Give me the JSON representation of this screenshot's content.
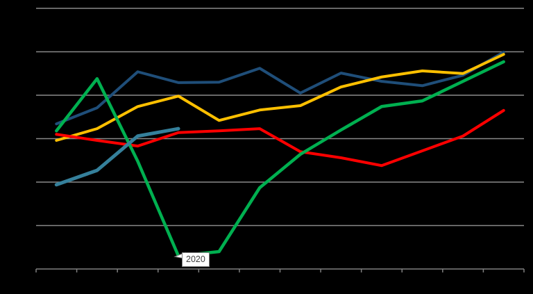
{
  "page": {
    "background": "#000000",
    "title": "",
    "visible_text": [
      "2020"
    ]
  },
  "chart_data": {
    "type": "line",
    "title": "",
    "xlabel": "",
    "ylabel": "",
    "axis_text_visible": false,
    "grid": true,
    "legend": "none",
    "num_points": 12,
    "x_tick_count": 13,
    "categories": [
      "",
      "",
      "",
      "2020",
      "",
      "",
      "",
      "",
      "",
      "",
      "",
      ""
    ],
    "ylim_gridline_units": [
      0,
      6
    ],
    "series": [
      {
        "name": "series-navy",
        "color": "#1F4E79",
        "width": 4,
        "values": [
          3.34,
          3.71,
          4.54,
          4.29,
          4.3,
          4.62,
          4.05,
          4.51,
          4.32,
          4.22,
          4.46,
          4.99
        ]
      },
      {
        "name": "series-gold",
        "color": "#FFC000",
        "width": 4,
        "values": [
          2.96,
          3.23,
          3.74,
          3.98,
          3.42,
          3.66,
          3.76,
          4.19,
          4.42,
          4.56,
          4.5,
          4.94
        ]
      },
      {
        "name": "series-red",
        "color": "#FF0000",
        "width": 4,
        "values": [
          3.1,
          2.96,
          2.83,
          3.14,
          3.18,
          3.23,
          2.7,
          2.56,
          2.38,
          2.72,
          3.06,
          3.65
        ]
      },
      {
        "name": "series-green",
        "color": "#00B050",
        "width": 4.5,
        "values": [
          3.18,
          4.38,
          2.48,
          0.3,
          0.4,
          1.87,
          2.64,
          3.2,
          3.74,
          3.87,
          4.32,
          4.77
        ]
      },
      {
        "name": "series-steel",
        "color": "#35809B",
        "width": 5,
        "values": [
          1.94,
          2.27,
          3.06,
          3.23
        ]
      }
    ],
    "callout": {
      "text": "2020",
      "series": "series-green",
      "point_index": 3
    },
    "colors": {
      "gridline": "#8a8a8a",
      "axis": "#808080",
      "callout_bg": "#FFFFFF",
      "callout_border": "#7F7F7F",
      "callout_text": "#3F3F3F"
    },
    "layout": {
      "plot_left": 52,
      "plot_right": 755,
      "plot_top": 12,
      "plot_bottom": 387,
      "gridline_divisions": 6,
      "tick_length": 5
    }
  }
}
